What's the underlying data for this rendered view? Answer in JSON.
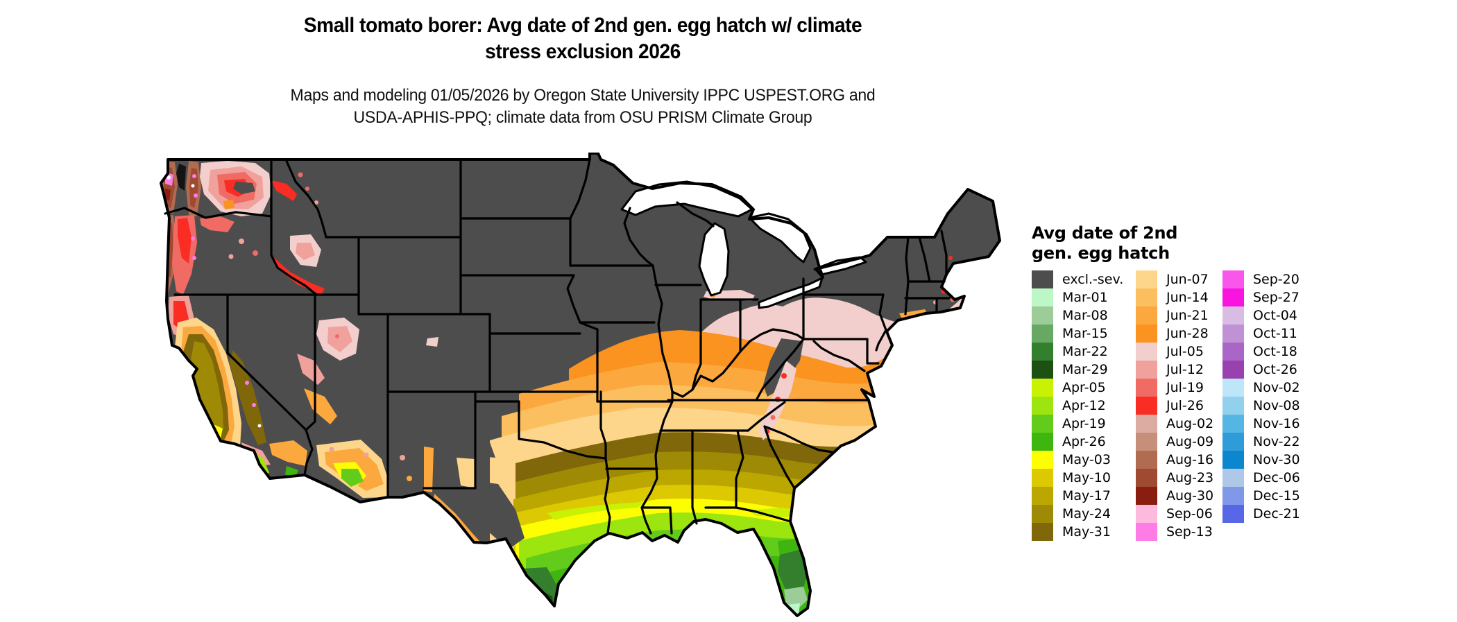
{
  "header": {
    "title_line1": "Small tomato borer: Avg date of 2nd gen. egg hatch w/ climate",
    "title_line2": "stress exclusion 2026",
    "subtitle_line1": "Maps and modeling 01/05/2026 by Oregon State University IPPC USPEST.ORG and",
    "subtitle_line2": "USDA-APHIS-PPQ; climate data from OSU PRISM Climate Group"
  },
  "legend": {
    "title_line1": "Avg date of 2nd",
    "title_line2": "gen. egg hatch",
    "columns": [
      [
        {
          "label": "excl.-sev.",
          "color": "#4d4d4d"
        },
        {
          "label": "Mar-01",
          "color": "#bdf7c8"
        },
        {
          "label": "Mar-08",
          "color": "#9ccc98"
        },
        {
          "label": "Mar-15",
          "color": "#67a963"
        },
        {
          "label": "Mar-22",
          "color": "#337f2e"
        },
        {
          "label": "Mar-29",
          "color": "#1c5113"
        },
        {
          "label": "Apr-05",
          "color": "#c9f104"
        },
        {
          "label": "Apr-12",
          "color": "#9ce50e"
        },
        {
          "label": "Apr-19",
          "color": "#63cc1b"
        },
        {
          "label": "Apr-26",
          "color": "#3fb510"
        },
        {
          "label": "May-03",
          "color": "#fdfe02"
        },
        {
          "label": "May-10",
          "color": "#dcc902"
        },
        {
          "label": "May-17",
          "color": "#bca701"
        },
        {
          "label": "May-24",
          "color": "#9e8a05"
        },
        {
          "label": "May-31",
          "color": "#7f670a"
        }
      ],
      [
        {
          "label": "Jun-07",
          "color": "#fdd68c"
        },
        {
          "label": "Jun-14",
          "color": "#fcbf60"
        },
        {
          "label": "Jun-21",
          "color": "#fba83e"
        },
        {
          "label": "Jun-28",
          "color": "#fa9320"
        },
        {
          "label": "Jul-05",
          "color": "#f2cfcc"
        },
        {
          "label": "Jul-12",
          "color": "#f1a19c"
        },
        {
          "label": "Jul-19",
          "color": "#ef6b64"
        },
        {
          "label": "Jul-26",
          "color": "#f92d23"
        },
        {
          "label": "Aug-02",
          "color": "#dcaba1"
        },
        {
          "label": "Aug-09",
          "color": "#c68f7a"
        },
        {
          "label": "Aug-16",
          "color": "#b16b51"
        },
        {
          "label": "Aug-23",
          "color": "#9f4a31"
        },
        {
          "label": "Aug-30",
          "color": "#881d10"
        },
        {
          "label": "Sep-06",
          "color": "#fdbade"
        },
        {
          "label": "Sep-13",
          "color": "#fd7ce6"
        }
      ],
      [
        {
          "label": "Sep-20",
          "color": "#f957ec"
        },
        {
          "label": "Sep-27",
          "color": "#fa14e0"
        },
        {
          "label": "Oct-04",
          "color": "#d9bce3"
        },
        {
          "label": "Oct-11",
          "color": "#bf92d6"
        },
        {
          "label": "Oct-18",
          "color": "#aa66c6"
        },
        {
          "label": "Oct-26",
          "color": "#9a41b0"
        },
        {
          "label": "Nov-02",
          "color": "#bee6f9"
        },
        {
          "label": "Nov-08",
          "color": "#92d1ee"
        },
        {
          "label": "Nov-16",
          "color": "#55b5e3"
        },
        {
          "label": "Nov-22",
          "color": "#2e9cd9"
        },
        {
          "label": "Nov-30",
          "color": "#0c86cc"
        },
        {
          "label": "Dec-06",
          "color": "#b0c8e8"
        },
        {
          "label": "Dec-15",
          "color": "#8098e8"
        },
        {
          "label": "Dec-21",
          "color": "#5866e8"
        }
      ]
    ]
  },
  "map_colors": {
    "excluded_gray": "#4d4d4d",
    "state_border": "#000000",
    "lake": "#ffffff",
    "background": "#ffffff"
  }
}
